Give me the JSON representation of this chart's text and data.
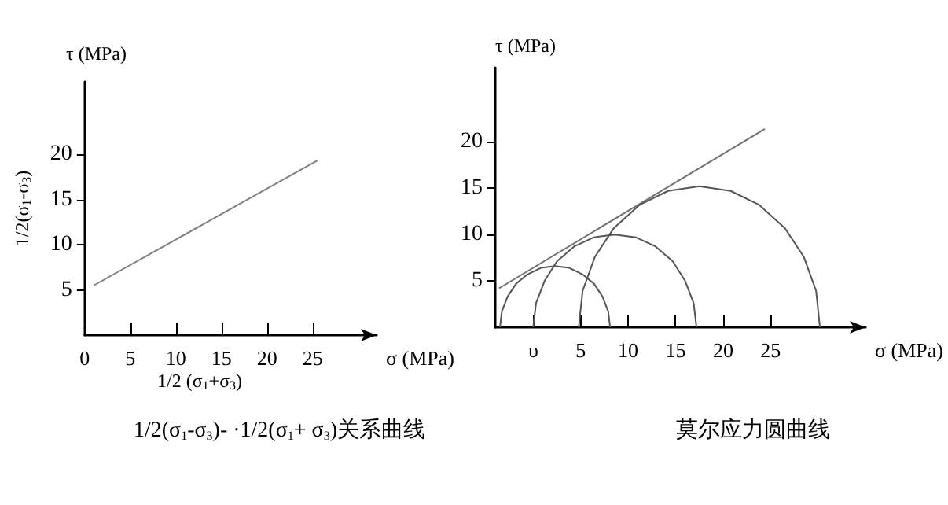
{
  "chart_data": [
    {
      "type": "line",
      "title": "1/2(σ$_{1}$-σ$_{3}$)- ·1/2(σ$_{1}$+ σ$_{3}$)关系曲线",
      "xlabel": "σ (MPa)",
      "ylabel": "1/2(σ$_{1}$-σ$_{3}$)",
      "annotations": [
        "τ (MPa)",
        "1/2 (σ$_{1}$+σ$_{3}$)"
      ],
      "xlim": [
        0,
        32
      ],
      "ylim": [
        0,
        28
      ],
      "xticks": [
        0,
        5,
        10,
        15,
        20,
        25
      ],
      "yticks": [
        5,
        10,
        15,
        20
      ],
      "marker": "none",
      "grid": false,
      "series": [
        {
          "color": "#808080",
          "x": [
            1,
            25.5
          ],
          "values": [
            5.5,
            19.3
          ]
        }
      ]
    },
    {
      "type": "line",
      "title": "莫尔应力圆曲线",
      "xlabel": "σ (MPa)",
      "ylabel": "τ (MPa)",
      "xlim": [
        -4,
        35
      ],
      "ylim": [
        0,
        28
      ],
      "xticks": [
        {
          "value": 0,
          "label": "υ"
        },
        5,
        10,
        15,
        20,
        25
      ],
      "yticks": [
        5,
        10,
        15,
        20
      ],
      "marker": "none",
      "grid": false,
      "series": [
        {
          "color": "#707070",
          "x": [
            -3.6,
            24.4
          ],
          "values": [
            4.2,
            21.4
          ]
        },
        {
          "color": "#555555",
          "x": [
            -3.5,
            -3.3,
            -2.7,
            -1.8,
            -0.6,
            0.8,
            2.3,
            3.8,
            5.2,
            6.4,
            7.3,
            7.9,
            8.1
          ],
          "values": [
            0,
            1.7,
            3.3,
            4.7,
            5.7,
            6.4,
            6.6,
            6.4,
            5.7,
            4.7,
            3.3,
            1.7,
            0
          ]
        },
        {
          "color": "#555555",
          "x": [
            0,
            0.3,
            1.2,
            2.5,
            4.3,
            6.4,
            8.6,
            10.8,
            12.9,
            14.7,
            16.0,
            16.9,
            17.2
          ],
          "values": [
            0,
            2.6,
            5,
            7.1,
            8.7,
            9.7,
            10,
            9.7,
            8.7,
            7.1,
            5,
            2.6,
            0
          ]
        },
        {
          "color": "#555555",
          "x": [
            4.8,
            5.2,
            6.5,
            8.5,
            11.2,
            14.2,
            17.5,
            20.8,
            23.8,
            26.5,
            28.5,
            29.8,
            30.2
          ],
          "values": [
            0,
            3.9,
            7.6,
            10.7,
            13.2,
            14.7,
            15.2,
            14.7,
            13.2,
            10.7,
            7.6,
            3.9,
            0
          ]
        }
      ]
    }
  ]
}
